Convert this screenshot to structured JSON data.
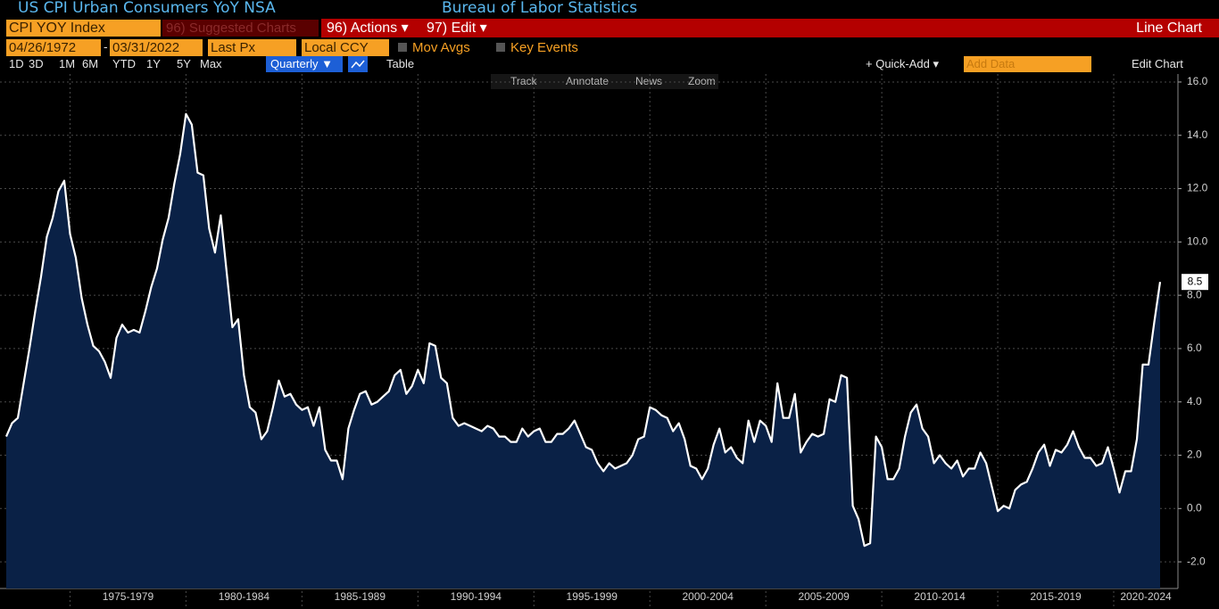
{
  "header": {
    "title": "US CPI Urban Consumers YoY NSA",
    "source": "Bureau of Labor Statistics"
  },
  "toolbar": {
    "security": "CPI YOY Index",
    "suggested": "96) Suggested Charts",
    "actions": "96) Actions ▾",
    "edit": "97) Edit ▾",
    "chart_type": "Line Chart"
  },
  "settings": {
    "start_date": "04/26/1972",
    "date_separator": "-",
    "end_date": "03/31/2022",
    "field": "Last Px",
    "currency": "Local CCY",
    "mov_avgs": "Mov Avgs",
    "key_events": "Key Events"
  },
  "periods_bar": {
    "ranges": [
      "1D",
      "3D",
      "1M",
      "6M",
      "YTD",
      "1Y",
      "5Y",
      "Max"
    ],
    "frequency": "Quarterly ▼",
    "table": "Table",
    "quick_add": "+ Quick-Add ▾",
    "add_data": "Add Data",
    "edit_chart": "Edit Chart"
  },
  "chart_tools": [
    "Track",
    "Annotate",
    "News",
    "Zoom"
  ],
  "chart_data": {
    "type": "line",
    "color": "#ffffff",
    "fill_color": "#0a2146",
    "period_labels": [
      "1975-1979",
      "1980-1984",
      "1985-1989",
      "1990-1994",
      "1995-1999",
      "2000-2004",
      "2005-2009",
      "2010-2014",
      "2015-2019",
      "2020-2024"
    ],
    "values": [
      2.7,
      3.2,
      3.4,
      4.7,
      6.0,
      7.4,
      8.7,
      10.2,
      10.9,
      11.9,
      12.3,
      10.3,
      9.4,
      7.9,
      6.9,
      6.1,
      5.9,
      5.5,
      4.9,
      6.4,
      6.9,
      6.6,
      6.7,
      6.6,
      7.4,
      8.3,
      9.0,
      10.1,
      10.9,
      12.2,
      13.3,
      14.8,
      14.4,
      12.6,
      12.5,
      10.5,
      9.6,
      11.0,
      8.9,
      6.8,
      7.1,
      5.0,
      3.8,
      3.6,
      2.6,
      2.9,
      3.8,
      4.8,
      4.2,
      4.3,
      3.9,
      3.7,
      3.8,
      3.1,
      3.8,
      2.2,
      1.8,
      1.8,
      1.1,
      3.0,
      3.7,
      4.3,
      4.4,
      3.9,
      4.0,
      4.2,
      4.4,
      5.0,
      5.2,
      4.3,
      4.6,
      5.2,
      4.7,
      6.2,
      6.1,
      4.9,
      4.7,
      3.4,
      3.1,
      3.2,
      3.1,
      3.0,
      2.9,
      3.1,
      3.0,
      2.7,
      2.7,
      2.5,
      2.5,
      3.0,
      2.7,
      2.9,
      3.0,
      2.5,
      2.5,
      2.8,
      2.8,
      3.0,
      3.3,
      2.8,
      2.3,
      2.2,
      1.7,
      1.4,
      1.7,
      1.5,
      1.6,
      1.7,
      2.0,
      2.6,
      2.7,
      3.8,
      3.7,
      3.5,
      3.4,
      2.9,
      3.2,
      2.6,
      1.6,
      1.5,
      1.1,
      1.5,
      2.4,
      3.0,
      2.1,
      2.3,
      1.9,
      1.7,
      3.3,
      2.5,
      3.3,
      3.1,
      2.5,
      4.7,
      3.4,
      3.4,
      4.3,
      2.1,
      2.5,
      2.8,
      2.7,
      2.8,
      4.1,
      4.0,
      5.0,
      4.9,
      0.1,
      -0.4,
      -1.4,
      -1.3,
      2.7,
      2.3,
      1.1,
      1.1,
      1.5,
      2.7,
      3.6,
      3.9,
      3.0,
      2.7,
      1.7,
      2.0,
      1.7,
      1.5,
      1.8,
      1.2,
      1.5,
      1.5,
      2.1,
      1.7,
      0.8,
      -0.1,
      0.1,
      0.0,
      0.7,
      0.9,
      1.0,
      1.5,
      2.1,
      2.4,
      1.6,
      2.2,
      2.1,
      2.4,
      2.9,
      2.3,
      1.9,
      1.9,
      1.6,
      1.7,
      2.3,
      1.5,
      0.6,
      1.4,
      1.4,
      2.6,
      5.4,
      5.4,
      7.0,
      8.5
    ],
    "ylim": [
      -3.0,
      16.3
    ],
    "yticks": [
      {
        "value": -2,
        "label": "-2.0"
      },
      {
        "value": 0,
        "label": "0.0"
      },
      {
        "value": 2,
        "label": "2.0"
      },
      {
        "value": 4,
        "label": "4.0"
      },
      {
        "value": 6,
        "label": "6.0"
      },
      {
        "value": 8,
        "label": "8.0"
      },
      {
        "value": 10,
        "label": "10.0"
      },
      {
        "value": 12,
        "label": "12.0"
      },
      {
        "value": 14,
        "label": "14.0"
      },
      {
        "value": 16,
        "label": "16.0"
      }
    ],
    "grid": true,
    "last_value_label": true
  }
}
